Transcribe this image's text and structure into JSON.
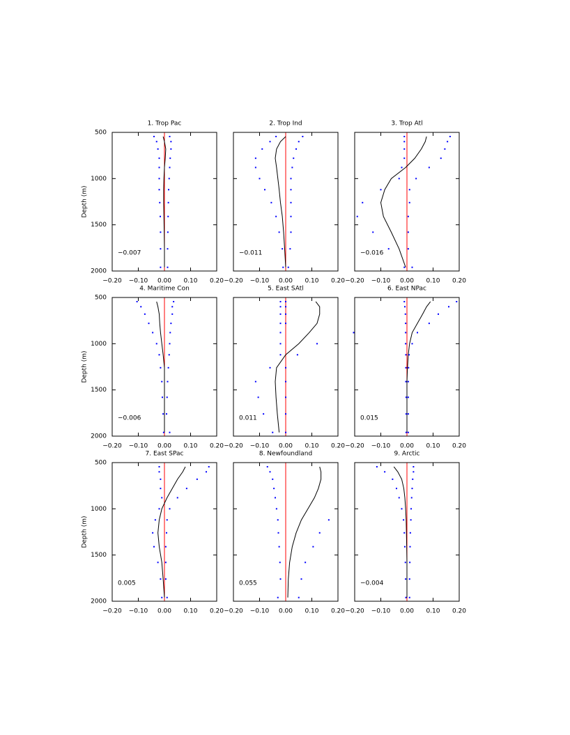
{
  "chart_data": [
    {
      "type": "line",
      "title": "1. Trop Pac",
      "ylabel": "Depth (m)",
      "annotation": "−0.007",
      "ytick_labels": true,
      "xlim": [
        -0.2,
        0.2
      ],
      "ylim": [
        500,
        2000
      ],
      "y_inverted": true,
      "refline": 0,
      "refline_color": "#ff0000",
      "xticks": [
        {
          "value": -0.2,
          "label": "−0.20"
        },
        {
          "value": -0.1,
          "label": "−0.10"
        },
        {
          "value": 0,
          "label": "0.00"
        },
        {
          "value": 0.1,
          "label": "0.10"
        },
        {
          "value": 0.2,
          "label": "0.20"
        }
      ],
      "yticks": [
        500,
        1000,
        1500,
        2000
      ],
      "y": [
        545,
        600,
        680,
        780,
        880,
        1000,
        1120,
        1260,
        1410,
        1580,
        1760,
        1960
      ],
      "series": [
        {
          "style": "line",
          "color": "#000000",
          "values": [
            -0.005,
            0.0,
            0.005,
            0.003,
            0.0,
            -0.002,
            -0.003,
            -0.003,
            -0.002,
            -0.001,
            0.0,
            0.0
          ]
        },
        {
          "style": "dots",
          "color": "#0000ff",
          "values": [
            -0.04,
            -0.03,
            -0.025,
            -0.02,
            -0.02,
            -0.02,
            -0.02,
            -0.018,
            -0.016,
            -0.015,
            -0.015,
            -0.015
          ]
        },
        {
          "style": "dots",
          "color": "#0000ff",
          "values": [
            0.02,
            0.025,
            0.025,
            0.022,
            0.02,
            0.018,
            0.016,
            0.015,
            0.014,
            0.013,
            0.012,
            0.012
          ]
        }
      ]
    },
    {
      "type": "line",
      "title": "2. Trop Ind",
      "annotation": "−0.011",
      "ytick_labels": false,
      "xlim": [
        -0.2,
        0.2
      ],
      "ylim": [
        500,
        2000
      ],
      "y_inverted": true,
      "refline": 0,
      "refline_color": "#ff0000",
      "xticks": [
        {
          "value": -0.2,
          "label": "−0.20"
        },
        {
          "value": -0.1,
          "label": "−0.10"
        },
        {
          "value": 0,
          "label": "0.00"
        },
        {
          "value": 0.1,
          "label": "0.10"
        },
        {
          "value": 0.2,
          "label": "0.20"
        }
      ],
      "yticks": [
        500,
        1000,
        1500,
        2000
      ],
      "y": [
        545,
        600,
        680,
        780,
        880,
        1000,
        1120,
        1260,
        1410,
        1580,
        1760,
        1960
      ],
      "series": [
        {
          "style": "line",
          "color": "#000000",
          "values": [
            0.0,
            -0.02,
            -0.035,
            -0.04,
            -0.035,
            -0.03,
            -0.025,
            -0.02,
            -0.013,
            -0.008,
            -0.004,
            0.0
          ]
        },
        {
          "style": "dots",
          "color": "#0000ff",
          "values": [
            -0.037,
            -0.06,
            -0.09,
            -0.115,
            -0.115,
            -0.1,
            -0.08,
            -0.055,
            -0.037,
            -0.025,
            -0.013,
            -0.01
          ]
        },
        {
          "style": "dots",
          "color": "#0000ff",
          "values": [
            0.065,
            0.05,
            0.04,
            0.03,
            0.025,
            0.02,
            0.02,
            0.02,
            0.02,
            0.02,
            0.017,
            0.01
          ]
        }
      ]
    },
    {
      "type": "line",
      "title": "3. Trop Atl",
      "annotation": "−0.016",
      "ytick_labels": false,
      "xlim": [
        -0.2,
        0.2
      ],
      "ylim": [
        500,
        2000
      ],
      "y_inverted": true,
      "refline": 0,
      "refline_color": "#ff0000",
      "xticks": [
        {
          "value": -0.2,
          "label": "−0.20"
        },
        {
          "value": -0.1,
          "label": "−0.10"
        },
        {
          "value": 0,
          "label": "0.00"
        },
        {
          "value": 0.1,
          "label": "0.10"
        },
        {
          "value": 0.2,
          "label": "0.20"
        }
      ],
      "yticks": [
        500,
        1000,
        1500,
        2000
      ],
      "y": [
        545,
        600,
        680,
        780,
        880,
        1000,
        1120,
        1260,
        1410,
        1580,
        1760,
        1960
      ],
      "series": [
        {
          "style": "line",
          "color": "#000000",
          "values": [
            0.075,
            0.07,
            0.055,
            0.03,
            -0.005,
            -0.06,
            -0.085,
            -0.1,
            -0.09,
            -0.06,
            -0.03,
            -0.005
          ]
        },
        {
          "style": "dots",
          "color": "#0000ff",
          "values": [
            -0.01,
            -0.01,
            -0.01,
            -0.01,
            -0.02,
            -0.03,
            -0.1,
            -0.17,
            -0.19,
            -0.13,
            -0.07,
            -0.01
          ]
        },
        {
          "style": "dots",
          "color": "#0000ff",
          "values": [
            0.165,
            0.155,
            0.145,
            0.13,
            0.085,
            0.035,
            0.01,
            0.01,
            0.005,
            0.005,
            0.005,
            0.02
          ]
        }
      ]
    },
    {
      "type": "line",
      "title": "4. Maritime Con",
      "ylabel": "Depth (m)",
      "annotation": "−0.006",
      "ytick_labels": true,
      "xlim": [
        -0.2,
        0.2
      ],
      "ylim": [
        500,
        2000
      ],
      "y_inverted": true,
      "refline": 0,
      "refline_color": "#ff0000",
      "xticks": [
        {
          "value": -0.2,
          "label": "−0.20"
        },
        {
          "value": -0.1,
          "label": "−0.10"
        },
        {
          "value": 0,
          "label": "0.00"
        },
        {
          "value": 0.1,
          "label": "0.10"
        },
        {
          "value": 0.2,
          "label": "0.20"
        }
      ],
      "yticks": [
        500,
        1000,
        1500,
        2000
      ],
      "y": [
        545,
        600,
        680,
        780,
        880,
        1000,
        1120,
        1260,
        1410,
        1580,
        1760,
        1960
      ],
      "series": [
        {
          "style": "line",
          "color": "#000000",
          "values": [
            -0.03,
            -0.025,
            -0.02,
            -0.018,
            -0.015,
            -0.01,
            -0.005,
            0.0,
            0.0,
            0.0,
            0.0,
            0.0
          ]
        },
        {
          "style": "dots",
          "color": "#0000ff",
          "values": [
            -0.105,
            -0.09,
            -0.075,
            -0.06,
            -0.045,
            -0.03,
            -0.02,
            -0.015,
            -0.01,
            -0.008,
            -0.005,
            -0.003
          ]
        },
        {
          "style": "dots",
          "color": "#0000ff",
          "values": [
            0.035,
            0.03,
            0.03,
            0.025,
            0.022,
            0.02,
            0.018,
            0.015,
            0.012,
            0.01,
            0.008,
            0.02
          ]
        }
      ]
    },
    {
      "type": "line",
      "title": "5. East SAtl",
      "annotation": "0.011",
      "ytick_labels": false,
      "xlim": [
        -0.2,
        0.2
      ],
      "ylim": [
        500,
        2000
      ],
      "y_inverted": true,
      "refline": 0,
      "refline_color": "#ff0000",
      "xticks": [
        {
          "value": -0.2,
          "label": "−0.20"
        },
        {
          "value": -0.1,
          "label": "−0.10"
        },
        {
          "value": 0,
          "label": "0.00"
        },
        {
          "value": 0.1,
          "label": "0.10"
        },
        {
          "value": 0.2,
          "label": "0.20"
        }
      ],
      "yticks": [
        500,
        1000,
        1500,
        2000
      ],
      "y": [
        545,
        600,
        680,
        780,
        880,
        1000,
        1120,
        1260,
        1410,
        1580,
        1760,
        1960
      ],
      "series": [
        {
          "style": "line",
          "color": "#000000",
          "values": [
            0.115,
            0.13,
            0.13,
            0.12,
            0.09,
            0.05,
            0.0,
            -0.035,
            -0.04,
            -0.037,
            -0.032,
            -0.025
          ]
        },
        {
          "style": "dots",
          "color": "#0000ff",
          "values": [
            -0.02,
            -0.02,
            -0.02,
            -0.02,
            -0.02,
            -0.02,
            -0.02,
            -0.06,
            -0.115,
            -0.105,
            -0.085,
            -0.05
          ]
        },
        {
          "style": "dots",
          "color": "#0000ff",
          "values": [
            0.0,
            0.0,
            0.0,
            0.0,
            0.26,
            0.12,
            0.045,
            0.0,
            0.0,
            0.0,
            0.0,
            0.0
          ]
        }
      ]
    },
    {
      "type": "line",
      "title": "6. East NPac",
      "annotation": "0.015",
      "ytick_labels": false,
      "xlim": [
        -0.2,
        0.2
      ],
      "ylim": [
        500,
        2000
      ],
      "y_inverted": true,
      "refline": 0,
      "refline_color": "#ff0000",
      "xticks": [
        {
          "value": -0.2,
          "label": "−0.20"
        },
        {
          "value": -0.1,
          "label": "−0.10"
        },
        {
          "value": 0,
          "label": "0.00"
        },
        {
          "value": 0.1,
          "label": "0.10"
        },
        {
          "value": 0.2,
          "label": "0.20"
        }
      ],
      "yticks": [
        500,
        1000,
        1500,
        2000
      ],
      "y": [
        545,
        600,
        680,
        780,
        880,
        1000,
        1120,
        1260,
        1410,
        1580,
        1760,
        1960
      ],
      "series": [
        {
          "style": "line",
          "color": "#000000",
          "values": [
            0.09,
            0.075,
            0.06,
            0.04,
            0.02,
            0.01,
            0.005,
            0.002,
            0.0,
            0.0,
            0.0,
            0.0
          ]
        },
        {
          "style": "dots",
          "color": "#0000ff",
          "values": [
            -0.01,
            -0.008,
            -0.006,
            -0.005,
            -0.005,
            -0.005,
            -0.004,
            -0.004,
            -0.004,
            -0.003,
            -0.003,
            -0.003
          ]
        },
        {
          "style": "dots",
          "color": "#0000ff",
          "values": [
            0.19,
            0.16,
            0.12,
            0.085,
            0.04,
            0.02,
            0.008,
            0.006,
            0.005,
            0.005,
            0.005,
            0.005
          ]
        }
      ]
    },
    {
      "type": "line",
      "title": "7. East SPac",
      "ylabel": "Depth (m)",
      "annotation": "0.005",
      "ytick_labels": true,
      "xlim": [
        -0.2,
        0.2
      ],
      "ylim": [
        500,
        2000
      ],
      "y_inverted": true,
      "refline": 0,
      "refline_color": "#ff0000",
      "xticks": [
        {
          "value": -0.2,
          "label": "−0.20"
        },
        {
          "value": -0.1,
          "label": "−0.10"
        },
        {
          "value": 0,
          "label": "0.00"
        },
        {
          "value": 0.1,
          "label": "0.10"
        },
        {
          "value": 0.2,
          "label": "0.20"
        }
      ],
      "yticks": [
        500,
        1000,
        1500,
        2000
      ],
      "y": [
        545,
        600,
        680,
        780,
        880,
        1000,
        1120,
        1260,
        1410,
        1580,
        1760,
        1960
      ],
      "series": [
        {
          "style": "line",
          "color": "#000000",
          "values": [
            0.08,
            0.07,
            0.05,
            0.03,
            0.01,
            -0.01,
            -0.02,
            -0.025,
            -0.02,
            -0.01,
            -0.005,
            0.0
          ]
        },
        {
          "style": "dots",
          "color": "#0000ff",
          "values": [
            -0.02,
            -0.02,
            -0.015,
            -0.015,
            -0.01,
            -0.02,
            -0.035,
            -0.045,
            -0.04,
            -0.025,
            -0.015,
            -0.01
          ]
        },
        {
          "style": "dots",
          "color": "#0000ff",
          "values": [
            0.17,
            0.16,
            0.125,
            0.085,
            0.05,
            0.02,
            0.01,
            0.008,
            0.005,
            0.005,
            0.005,
            0.01
          ]
        }
      ]
    },
    {
      "type": "line",
      "title": "8. Newfoundland",
      "annotation": "0.055",
      "ytick_labels": false,
      "xlim": [
        -0.2,
        0.2
      ],
      "ylim": [
        500,
        2000
      ],
      "y_inverted": true,
      "refline": 0,
      "refline_color": "#ff0000",
      "xticks": [
        {
          "value": -0.2,
          "label": "−0.20"
        },
        {
          "value": -0.1,
          "label": "−0.10"
        },
        {
          "value": 0,
          "label": "0.00"
        },
        {
          "value": 0.1,
          "label": "0.10"
        },
        {
          "value": 0.2,
          "label": "0.20"
        }
      ],
      "yticks": [
        500,
        1000,
        1500,
        2000
      ],
      "y": [
        545,
        600,
        680,
        780,
        880,
        1000,
        1120,
        1260,
        1410,
        1580,
        1760,
        1960
      ],
      "series": [
        {
          "style": "line",
          "color": "#000000",
          "values": [
            0.13,
            0.135,
            0.135,
            0.125,
            0.11,
            0.085,
            0.06,
            0.04,
            0.025,
            0.015,
            0.01,
            0.008
          ]
        },
        {
          "style": "dots",
          "color": "#0000ff",
          "values": [
            -0.07,
            -0.06,
            -0.05,
            -0.045,
            -0.04,
            -0.035,
            -0.03,
            -0.028,
            -0.025,
            -0.022,
            -0.02,
            -0.03
          ]
        },
        {
          "style": "dots",
          "color": "#0000ff",
          "values": [
            null,
            null,
            null,
            null,
            null,
            null,
            0.165,
            0.13,
            0.105,
            0.075,
            0.06,
            0.05
          ]
        }
      ]
    },
    {
      "type": "line",
      "title": "9. Arctic",
      "annotation": "−0.004",
      "ytick_labels": false,
      "xlim": [
        -0.2,
        0.2
      ],
      "ylim": [
        500,
        2000
      ],
      "y_inverted": true,
      "refline": 0,
      "refline_color": "#ff0000",
      "xticks": [
        {
          "value": -0.2,
          "label": "−0.20"
        },
        {
          "value": -0.1,
          "label": "−0.10"
        },
        {
          "value": 0,
          "label": "0.00"
        },
        {
          "value": 0.1,
          "label": "0.10"
        },
        {
          "value": 0.2,
          "label": "0.20"
        }
      ],
      "yticks": [
        500,
        1000,
        1500,
        2000
      ],
      "y": [
        545,
        600,
        680,
        780,
        880,
        1000,
        1120,
        1260,
        1410,
        1580,
        1760,
        1960
      ],
      "series": [
        {
          "style": "line",
          "color": "#000000",
          "values": [
            -0.05,
            -0.035,
            -0.02,
            -0.012,
            -0.008,
            -0.005,
            -0.003,
            -0.002,
            -0.001,
            0.0,
            0.0,
            0.0
          ]
        },
        {
          "style": "dots",
          "color": "#0000ff",
          "values": [
            -0.115,
            -0.085,
            -0.055,
            -0.04,
            -0.03,
            -0.02,
            -0.013,
            -0.01,
            -0.008,
            -0.006,
            -0.005,
            -0.004
          ]
        },
        {
          "style": "dots",
          "color": "#0000ff",
          "values": [
            0.025,
            0.025,
            0.022,
            0.02,
            0.018,
            0.016,
            0.015,
            0.013,
            0.012,
            0.011,
            0.01,
            0.01
          ]
        }
      ]
    }
  ]
}
